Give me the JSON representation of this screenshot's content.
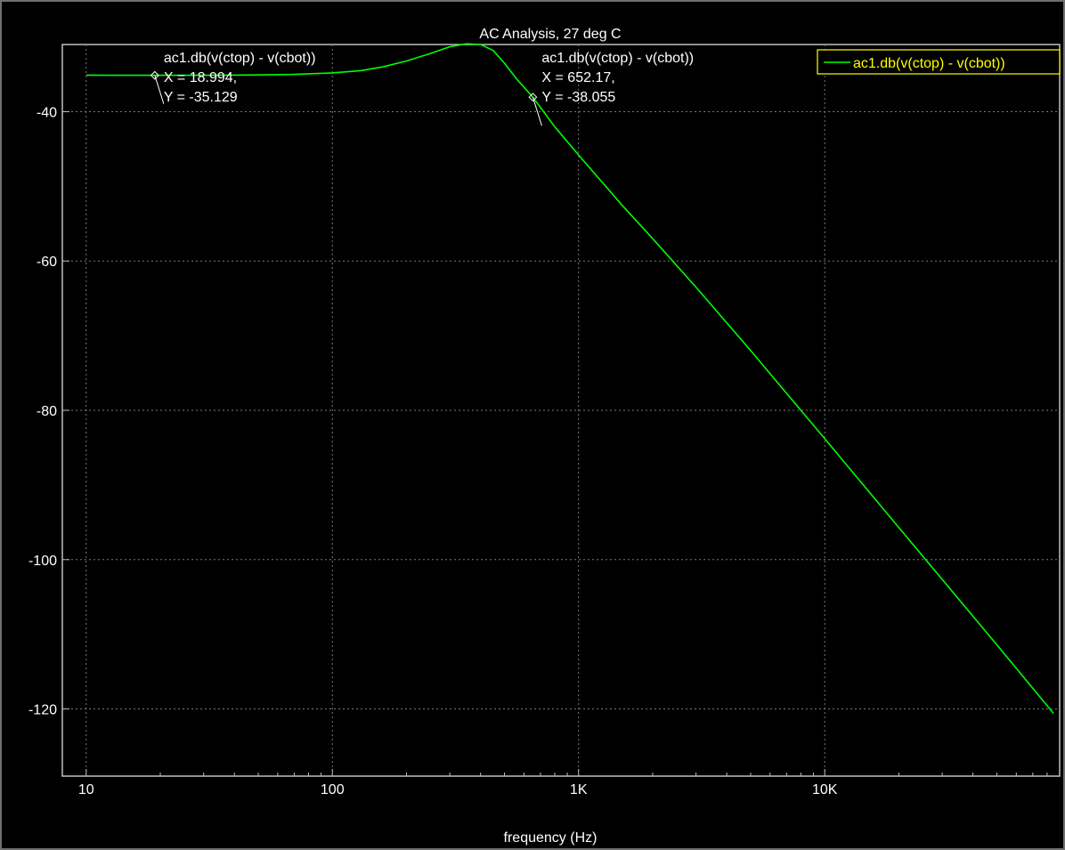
{
  "chart_data": {
    "type": "line",
    "title": "AC Analysis, 27 deg C",
    "xlabel": "frequency (Hz)",
    "ylabel": "",
    "xscale": "log",
    "xlim": [
      8,
      90000
    ],
    "ylim": [
      -129,
      -31
    ],
    "x_ticks": [
      {
        "value": 10,
        "label": "10"
      },
      {
        "value": 100,
        "label": "100"
      },
      {
        "value": 1000,
        "label": "1K"
      },
      {
        "value": 10000,
        "label": "10K"
      }
    ],
    "y_ticks": [
      {
        "value": -40,
        "label": "-40"
      },
      {
        "value": -60,
        "label": "-60"
      },
      {
        "value": -80,
        "label": "-80"
      },
      {
        "value": -100,
        "label": "-100"
      },
      {
        "value": -120,
        "label": "-120"
      }
    ],
    "grid": true,
    "legend_position": "top-right",
    "series": [
      {
        "name": "ac1.db(v(ctop) - v(cbot))",
        "color": "#00ff00",
        "x": [
          10,
          15,
          20,
          30,
          50,
          70,
          100,
          130,
          160,
          200,
          250,
          300,
          350,
          400,
          450,
          500,
          560,
          652.17,
          800,
          1000,
          1500,
          2000,
          3000,
          5000,
          10000,
          20000,
          50000,
          85000
        ],
        "y": [
          -35.1,
          -35.12,
          -35.13,
          -35.12,
          -35.08,
          -35.0,
          -34.8,
          -34.5,
          -34.0,
          -33.2,
          -32.2,
          -31.3,
          -30.9,
          -31.0,
          -31.8,
          -33.5,
          -35.6,
          -38.055,
          -42.0,
          -45.8,
          -52.5,
          -57.0,
          -63.5,
          -72.0,
          -83.8,
          -95.7,
          -111.4,
          -120.6
        ]
      }
    ],
    "annotations": [
      {
        "label": "ac1.db(v(ctop) - v(cbot))",
        "x_text": "X = 18.994,",
        "y_text": "Y = -35.129",
        "x": 18.994,
        "y": -35.129
      },
      {
        "label": "ac1.db(v(ctop) - v(cbot))",
        "x_text": "X = 652.17,",
        "y_text": "Y = -38.055",
        "x": 652.17,
        "y": -38.055
      }
    ]
  }
}
